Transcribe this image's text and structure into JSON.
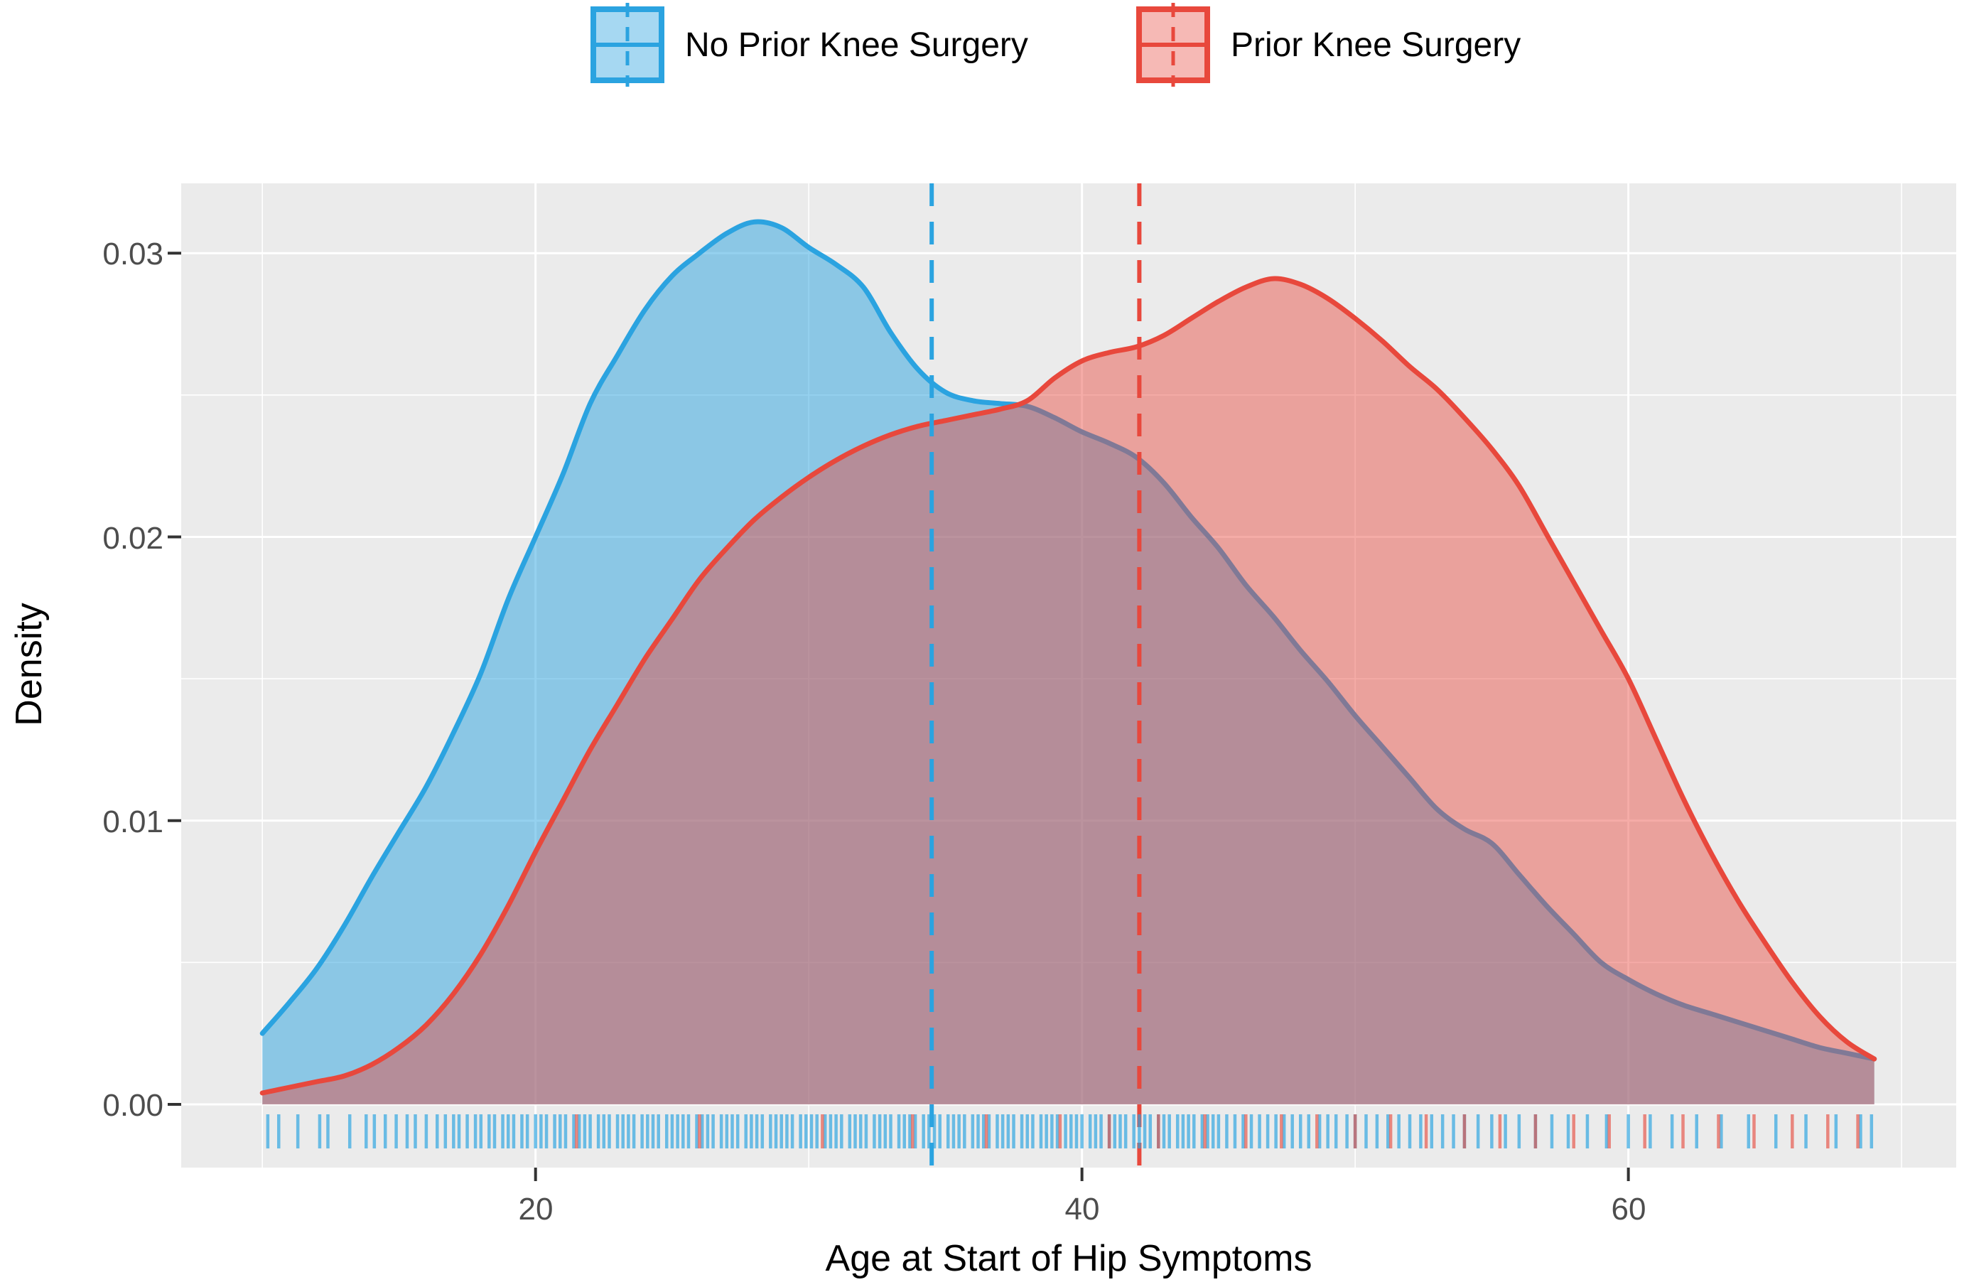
{
  "legend": {
    "position": "top",
    "items": [
      {
        "label": "No Prior Knee Surgery",
        "line_color": "#2BA3E0",
        "fill_color": "rgba(43,163,224,0.5)",
        "key_fill": "rgba(43,163,224,0.42)"
      },
      {
        "label": "Prior Knee Surgery",
        "line_color": "#E8483C",
        "fill_color": "rgba(232,72,60,0.45)",
        "key_fill": "rgba(232,72,60,0.38)"
      }
    ]
  },
  "axes": {
    "y_title": "Density",
    "x_title": "Age at Start of Hip Symptoms",
    "y_tick_labels": [
      "0.00",
      "0.01",
      "0.02",
      "0.03"
    ],
    "x_tick_labels": [
      "20",
      "40",
      "60"
    ]
  },
  "panel": {
    "background": "#EBEBEB",
    "grid_color": "#FFFFFF"
  },
  "chart_data": {
    "type": "area",
    "subtype": "overlaid-density-with-rug",
    "title": "",
    "xlabel": "Age at Start of Hip Symptoms",
    "ylabel": "Density",
    "x_range": [
      7.03,
      72.0
    ],
    "y_range": [
      -0.00223,
      0.03246
    ],
    "x_major_ticks": [
      20,
      40,
      60
    ],
    "x_minor_gridlines": [
      10,
      30,
      50,
      70
    ],
    "y_major_ticks": [
      0.0,
      0.01,
      0.02,
      0.03
    ],
    "y_minor_gridlines": [
      0.005,
      0.015,
      0.025
    ],
    "grid": true,
    "legend_position": "top",
    "series": [
      {
        "name": "No Prior Knee Surgery",
        "line_color": "#2BA3E0",
        "fill_rgba": "rgba(43,163,224,0.5)",
        "mean_vline": 34.5,
        "points": [
          [
            10,
            0.0025
          ],
          [
            11,
            0.0036
          ],
          [
            12,
            0.0048
          ],
          [
            13,
            0.0063
          ],
          [
            14,
            0.008
          ],
          [
            15,
            0.0096
          ],
          [
            16,
            0.0112
          ],
          [
            17,
            0.0131
          ],
          [
            18,
            0.0152
          ],
          [
            19,
            0.0178
          ],
          [
            20,
            0.02
          ],
          [
            21,
            0.0222
          ],
          [
            22,
            0.0247
          ],
          [
            23,
            0.0264
          ],
          [
            24,
            0.028
          ],
          [
            25,
            0.0292
          ],
          [
            26,
            0.03
          ],
          [
            27,
            0.0307
          ],
          [
            28,
            0.0311
          ],
          [
            29,
            0.0309
          ],
          [
            30,
            0.0302
          ],
          [
            31,
            0.0296
          ],
          [
            32,
            0.0288
          ],
          [
            33,
            0.0272
          ],
          [
            34,
            0.0259
          ],
          [
            35,
            0.0251
          ],
          [
            36,
            0.0248
          ],
          [
            37,
            0.0247
          ],
          [
            38,
            0.0246
          ],
          [
            39,
            0.0242
          ],
          [
            40,
            0.0237
          ],
          [
            41,
            0.0233
          ],
          [
            42,
            0.0228
          ],
          [
            43,
            0.0219
          ],
          [
            44,
            0.0207
          ],
          [
            45,
            0.0196
          ],
          [
            46,
            0.0183
          ],
          [
            47,
            0.0172
          ],
          [
            48,
            0.016
          ],
          [
            49,
            0.0149
          ],
          [
            50,
            0.0137
          ],
          [
            51,
            0.0126
          ],
          [
            52,
            0.0115
          ],
          [
            53,
            0.0104
          ],
          [
            54,
            0.0097
          ],
          [
            55,
            0.0092
          ],
          [
            56,
            0.0081
          ],
          [
            57,
            0.007
          ],
          [
            58,
            0.006
          ],
          [
            59,
            0.005
          ],
          [
            60,
            0.0044
          ],
          [
            61,
            0.0039
          ],
          [
            62,
            0.0035
          ],
          [
            63,
            0.0032
          ],
          [
            64,
            0.0029
          ],
          [
            65,
            0.0026
          ],
          [
            66,
            0.0023
          ],
          [
            67,
            0.002
          ],
          [
            68,
            0.0018
          ],
          [
            69,
            0.0016
          ]
        ],
        "rug": [
          10.2,
          10.6,
          11.3,
          12.1,
          12.4,
          13.2,
          13.8,
          14.1,
          14.5,
          14.9,
          15.3,
          15.6,
          16.0,
          16.4,
          16.7,
          17.0,
          17.2,
          17.5,
          17.8,
          18.0,
          18.3,
          18.5,
          18.8,
          19.0,
          19.2,
          19.5,
          19.7,
          20.0,
          20.2,
          20.4,
          20.7,
          20.9,
          21.1,
          21.4,
          21.6,
          21.8,
          22.0,
          22.3,
          22.5,
          22.7,
          23.0,
          23.2,
          23.4,
          23.6,
          23.9,
          24.1,
          24.3,
          24.5,
          24.8,
          25.0,
          25.2,
          25.4,
          25.6,
          25.9,
          26.1,
          26.3,
          26.5,
          26.8,
          27.0,
          27.2,
          27.4,
          27.7,
          27.9,
          28.1,
          28.3,
          28.6,
          28.8,
          29.0,
          29.2,
          29.4,
          29.7,
          29.9,
          30.1,
          30.3,
          30.6,
          30.8,
          31.0,
          31.2,
          31.5,
          31.7,
          31.9,
          32.1,
          32.4,
          32.6,
          32.8,
          33.0,
          33.3,
          33.5,
          33.7,
          33.9,
          34.2,
          34.4,
          34.6,
          34.8,
          35.1,
          35.3,
          35.5,
          35.7,
          36.0,
          36.2,
          36.4,
          36.6,
          36.9,
          37.1,
          37.3,
          37.5,
          37.8,
          38.0,
          38.2,
          38.5,
          38.7,
          38.9,
          39.1,
          39.4,
          39.6,
          39.8,
          40.0,
          40.3,
          40.5,
          40.7,
          41.0,
          41.2,
          41.4,
          41.6,
          41.9,
          42.1,
          42.3,
          42.5,
          42.8,
          43.0,
          43.2,
          43.5,
          43.7,
          43.9,
          44.1,
          44.4,
          44.6,
          44.8,
          45.0,
          45.3,
          45.6,
          45.9,
          46.2,
          46.5,
          46.8,
          47.1,
          47.4,
          47.7,
          48.0,
          48.3,
          48.7,
          49.0,
          49.3,
          49.7,
          50.0,
          50.4,
          50.8,
          51.2,
          51.6,
          52.0,
          52.4,
          52.8,
          53.2,
          53.6,
          54.0,
          54.5,
          55.0,
          55.5,
          56.0,
          56.6,
          57.2,
          57.8,
          58.5,
          59.2,
          60.0,
          60.8,
          61.6,
          62.5,
          63.4,
          64.4,
          65.4,
          66.5,
          67.6,
          68.5,
          68.9
        ]
      },
      {
        "name": "Prior Knee Surgery",
        "line_color": "#E8483C",
        "fill_rgba": "rgba(232,72,60,0.45)",
        "mean_vline": 42.1,
        "points": [
          [
            10,
            0.0004
          ],
          [
            11,
            0.0006
          ],
          [
            12,
            0.0008
          ],
          [
            13,
            0.001
          ],
          [
            14,
            0.0014
          ],
          [
            15,
            0.002
          ],
          [
            16,
            0.0028
          ],
          [
            17,
            0.0039
          ],
          [
            18,
            0.0053
          ],
          [
            19,
            0.007
          ],
          [
            20,
            0.0089
          ],
          [
            21,
            0.0107
          ],
          [
            22,
            0.0125
          ],
          [
            23,
            0.0141
          ],
          [
            24,
            0.0157
          ],
          [
            25,
            0.0171
          ],
          [
            26,
            0.0185
          ],
          [
            27,
            0.0196
          ],
          [
            28,
            0.0206
          ],
          [
            29,
            0.0214
          ],
          [
            30,
            0.0221
          ],
          [
            31,
            0.0227
          ],
          [
            32,
            0.0232
          ],
          [
            33,
            0.0236
          ],
          [
            34,
            0.0239
          ],
          [
            35,
            0.0241
          ],
          [
            36,
            0.0243
          ],
          [
            37,
            0.0245
          ],
          [
            38,
            0.0248
          ],
          [
            39,
            0.0256
          ],
          [
            40,
            0.0262
          ],
          [
            41,
            0.0265
          ],
          [
            42,
            0.0267
          ],
          [
            43,
            0.0271
          ],
          [
            44,
            0.0277
          ],
          [
            45,
            0.0283
          ],
          [
            46,
            0.0288
          ],
          [
            47,
            0.0291
          ],
          [
            48,
            0.0289
          ],
          [
            49,
            0.0284
          ],
          [
            50,
            0.0277
          ],
          [
            51,
            0.0269
          ],
          [
            52,
            0.026
          ],
          [
            53,
            0.0252
          ],
          [
            54,
            0.0242
          ],
          [
            55,
            0.0231
          ],
          [
            56,
            0.0218
          ],
          [
            57,
            0.0201
          ],
          [
            58,
            0.0184
          ],
          [
            59,
            0.0167
          ],
          [
            60,
            0.015
          ],
          [
            61,
            0.0129
          ],
          [
            62,
            0.0108
          ],
          [
            63,
            0.0089
          ],
          [
            64,
            0.0072
          ],
          [
            65,
            0.0057
          ],
          [
            66,
            0.0043
          ],
          [
            67,
            0.0031
          ],
          [
            68,
            0.0022
          ],
          [
            69,
            0.0016
          ]
        ],
        "rug": [
          21.5,
          26.0,
          30.5,
          33.8,
          36.5,
          39.2,
          41.0,
          42.8,
          44.5,
          46.0,
          47.3,
          48.6,
          50.0,
          51.3,
          52.6,
          54.0,
          55.3,
          56.6,
          58.0,
          59.3,
          60.6,
          62.0,
          63.3,
          64.6,
          66.0,
          67.3,
          68.4
        ]
      }
    ]
  }
}
